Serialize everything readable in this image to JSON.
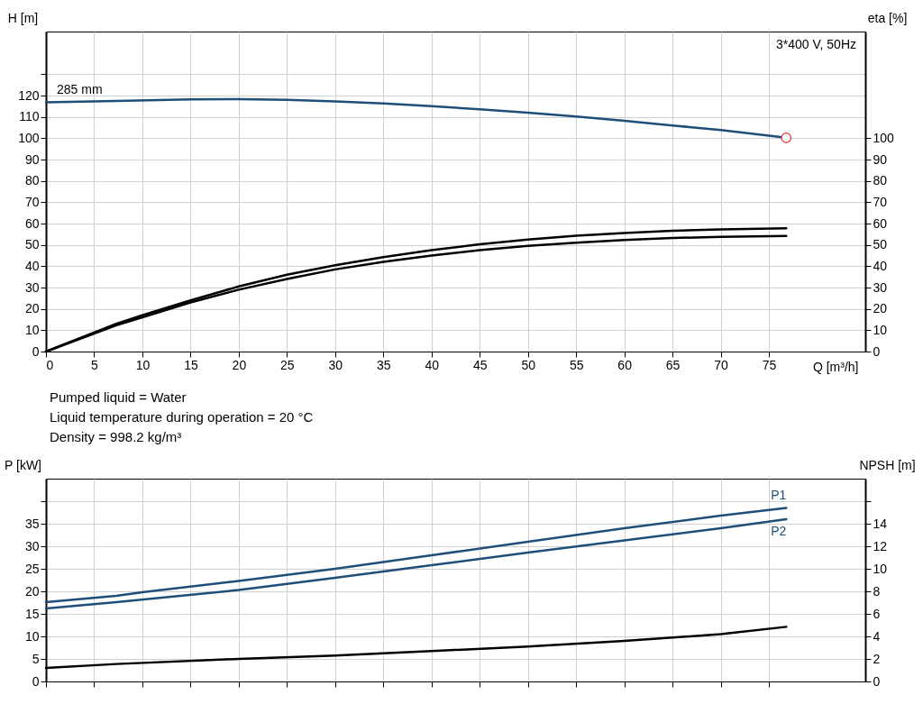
{
  "chart_data": [
    {
      "type": "line",
      "xlabel": "Q [m³/h]",
      "ylabel": "H [m]",
      "y2label": "eta [%]",
      "xlim": [
        0,
        85
      ],
      "xticks": [
        0,
        5,
        10,
        15,
        20,
        25,
        30,
        35,
        40,
        45,
        50,
        55,
        60,
        65,
        70,
        75
      ],
      "ylim": [
        0,
        150
      ],
      "yticks": [
        0,
        10,
        20,
        30,
        40,
        50,
        60,
        70,
        80,
        90,
        100,
        110,
        120,
        {
          "value": 130,
          "label": null
        }
      ],
      "y2lim": [
        0,
        150
      ],
      "y2ticks": [
        0,
        10,
        20,
        30,
        40,
        50,
        60,
        70,
        80,
        90,
        100
      ],
      "grid": true,
      "annotations": [
        "3*400 V, 50Hz"
      ],
      "series": [
        {
          "name": "285 mm",
          "color": "#1f4e79",
          "x": [
            0,
            7.3,
            15,
            20,
            25,
            30,
            35,
            40,
            45,
            50,
            55,
            60,
            65,
            70,
            76.8
          ],
          "values": [
            116.8,
            117.5,
            118.2,
            118.3,
            118,
            117.3,
            116.3,
            115,
            113.6,
            112,
            110.2,
            108.2,
            106,
            103.8,
            100.2
          ]
        },
        {
          "color": "#000000",
          "axis": "y2",
          "x": [
            0,
            7.3,
            10,
            15,
            20,
            25,
            30,
            35,
            40,
            45,
            50,
            55,
            60,
            65,
            70,
            76.8
          ],
          "values": [
            0,
            13,
            17,
            24,
            30.5,
            36,
            40.5,
            44.3,
            47.5,
            50.3,
            52.5,
            54.3,
            55.6,
            56.6,
            57.3,
            57.8
          ]
        },
        {
          "color": "#000000",
          "axis": "y2",
          "x": [
            0,
            7.3,
            10,
            15,
            20,
            25,
            30,
            35,
            40,
            45,
            50,
            55,
            60,
            65,
            70,
            76.8
          ],
          "values": [
            0,
            12.3,
            16,
            23,
            29,
            34,
            38.5,
            42,
            45,
            47.5,
            49.5,
            51,
            52.3,
            53.2,
            53.8,
            54.2
          ]
        },
        {
          "type": "scatter",
          "marker": "circle",
          "color": "#e03030",
          "x": [
            76.8
          ],
          "values": [
            100.2
          ]
        }
      ]
    },
    {
      "type": "line",
      "ylabel": "P [kW]",
      "y2label": "NPSH [m]",
      "xlim": [
        0,
        85
      ],
      "xticks": [
        0,
        5,
        10,
        15,
        20,
        25,
        30,
        35,
        40,
        45,
        50,
        55,
        60,
        65,
        70,
        75
      ],
      "ylim": [
        0,
        45
      ],
      "yticks": [
        0,
        5,
        10,
        15,
        20,
        25,
        30,
        35,
        {
          "value": 40,
          "label": null
        }
      ],
      "y2lim": [
        0,
        18
      ],
      "y2ticks": [
        0,
        2,
        4,
        6,
        8,
        10,
        12,
        14,
        {
          "value": 16,
          "label": null
        }
      ],
      "grid": true,
      "tick_labels": "y",
      "annotations": [
        "Pumped liquid = Water",
        "Liquid temperature during operation = 20 °C",
        "Density = 998.2 kg/m³"
      ],
      "series": [
        {
          "name": "P1",
          "color": "#1f4e79",
          "x": [
            0,
            7.3,
            10,
            20,
            30,
            40,
            50,
            60,
            70,
            76.8
          ],
          "values": [
            17.6,
            19,
            19.8,
            22.3,
            25,
            28,
            31,
            34,
            36.8,
            38.5
          ]
        },
        {
          "name": "P2",
          "color": "#1f4e79",
          "x": [
            0,
            7.3,
            20,
            30,
            40,
            50,
            60,
            70,
            76.8
          ],
          "values": [
            16.2,
            17.6,
            20.3,
            23,
            25.8,
            28.6,
            31.3,
            34,
            36
          ]
        },
        {
          "color": "#000000",
          "axis": "y2",
          "x": [
            0,
            7.3,
            20,
            30,
            40,
            50,
            60,
            70,
            76.8
          ],
          "values": [
            1.2,
            1.55,
            2,
            2.3,
            2.7,
            3.1,
            3.6,
            4.2,
            4.85
          ]
        }
      ]
    }
  ]
}
